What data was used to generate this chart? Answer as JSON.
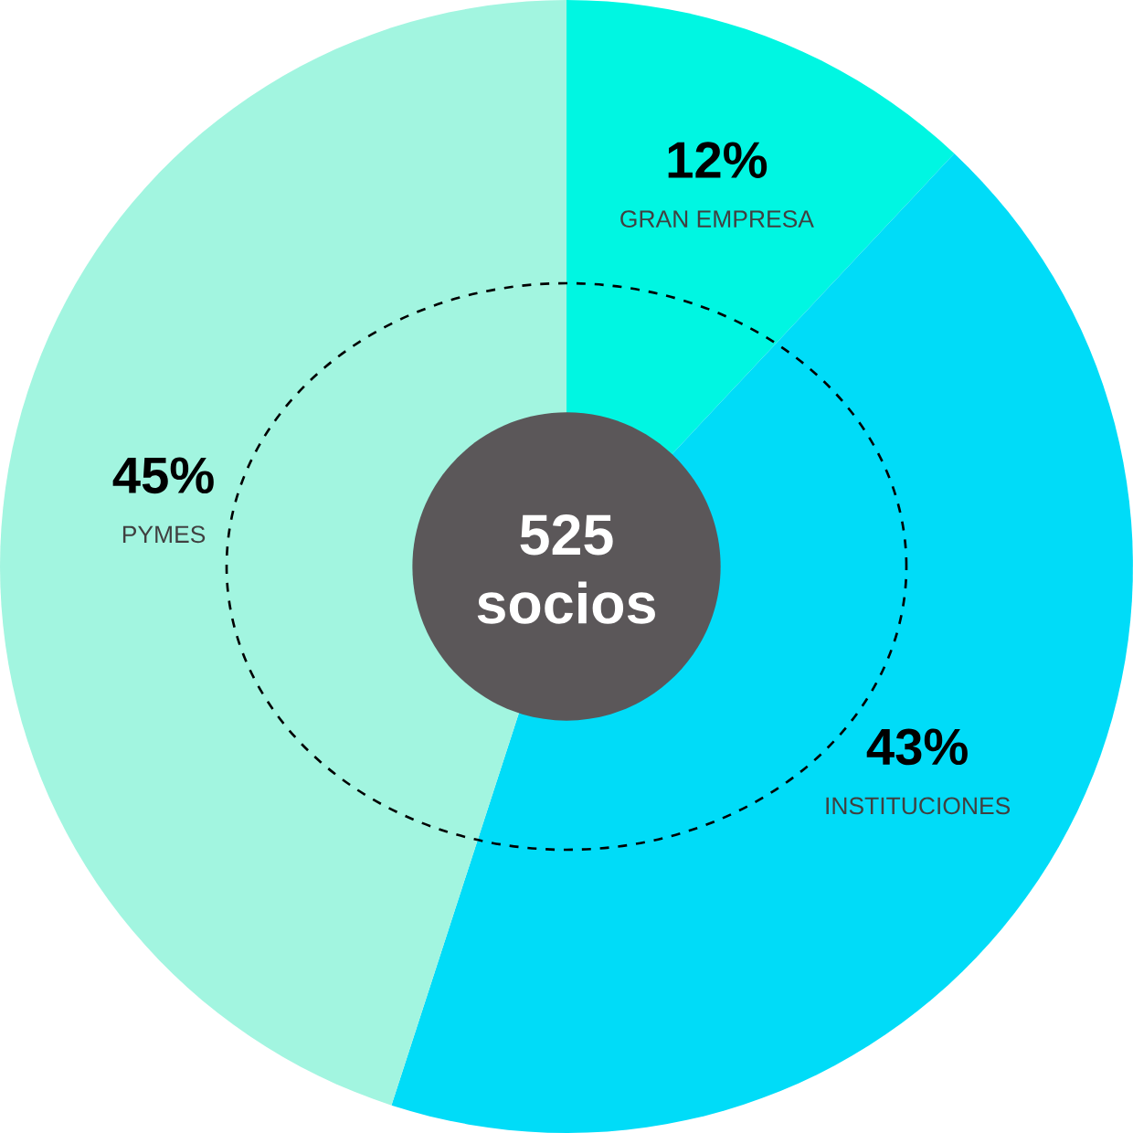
{
  "chart_data": {
    "type": "donut",
    "categories": [
      "GRAN EMPRESA",
      "INSTITUCIONES",
      "PYMES"
    ],
    "values": [
      12,
      43,
      45
    ],
    "value_labels": [
      "12%",
      "43%",
      "45%"
    ],
    "colors": [
      "#00f6e2",
      "#00dcf8",
      "#a2f5e0"
    ],
    "annotations": [
      "525",
      "socios"
    ]
  }
}
